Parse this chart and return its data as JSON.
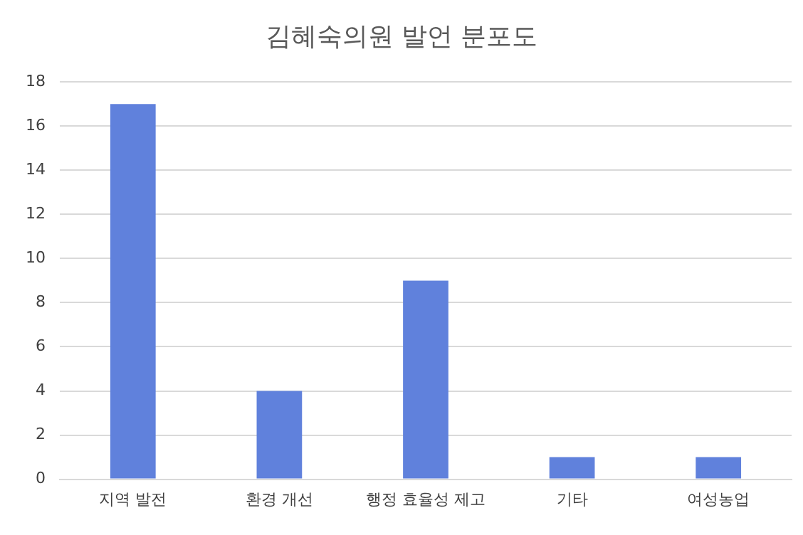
{
  "chart_data": {
    "type": "bar",
    "title": "김혜숙의원 발언 분포도",
    "categories": [
      "지역 발전",
      "환경 개선",
      "행정 효율성 제고",
      "기타",
      "여성농업"
    ],
    "values": [
      17,
      4,
      9,
      1,
      1
    ],
    "color": "#6081dc",
    "ylim": [
      0,
      18
    ],
    "yticks": [
      0,
      2,
      4,
      6,
      8,
      10,
      12,
      14,
      16,
      18
    ],
    "grid": "y",
    "legend": false
  }
}
